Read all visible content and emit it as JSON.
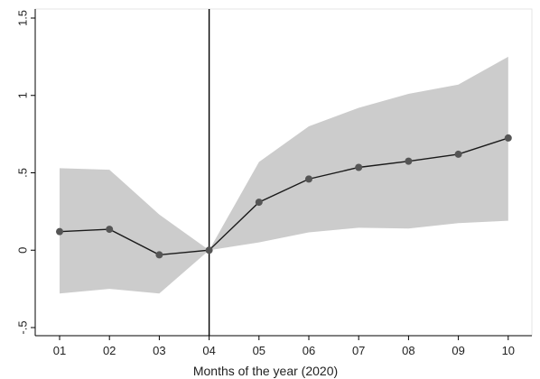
{
  "chart_data": {
    "type": "line",
    "title": "",
    "xlabel": "Months of the year (2020)",
    "ylabel": "",
    "categories": [
      "01",
      "02",
      "03",
      "04",
      "05",
      "06",
      "07",
      "08",
      "09",
      "10"
    ],
    "series": [
      {
        "name": "",
        "values": [
          0.12,
          0.135,
          -0.03,
          0.0,
          0.31,
          0.46,
          0.535,
          0.575,
          0.62,
          0.725
        ]
      }
    ],
    "confidence_band": {
      "lower": [
        -0.28,
        -0.25,
        -0.28,
        0.0,
        0.05,
        0.115,
        0.145,
        0.14,
        0.175,
        0.19
      ],
      "upper": [
        0.53,
        0.52,
        0.23,
        0.0,
        0.57,
        0.8,
        0.92,
        1.01,
        1.07,
        1.25
      ]
    },
    "reference_line_x": "04",
    "ylim": [
      -0.5,
      1.5
    ],
    "yticks": [
      -0.5,
      0,
      0.5,
      1,
      1.5
    ],
    "ytick_labels": [
      "-.5",
      "0",
      ".5",
      "1",
      "1.5"
    ],
    "grid": false,
    "legend": "none",
    "colors": {
      "line": "#1a1a1a",
      "marker": "#555555",
      "band": "#cccccc",
      "axis": "#000000"
    }
  }
}
